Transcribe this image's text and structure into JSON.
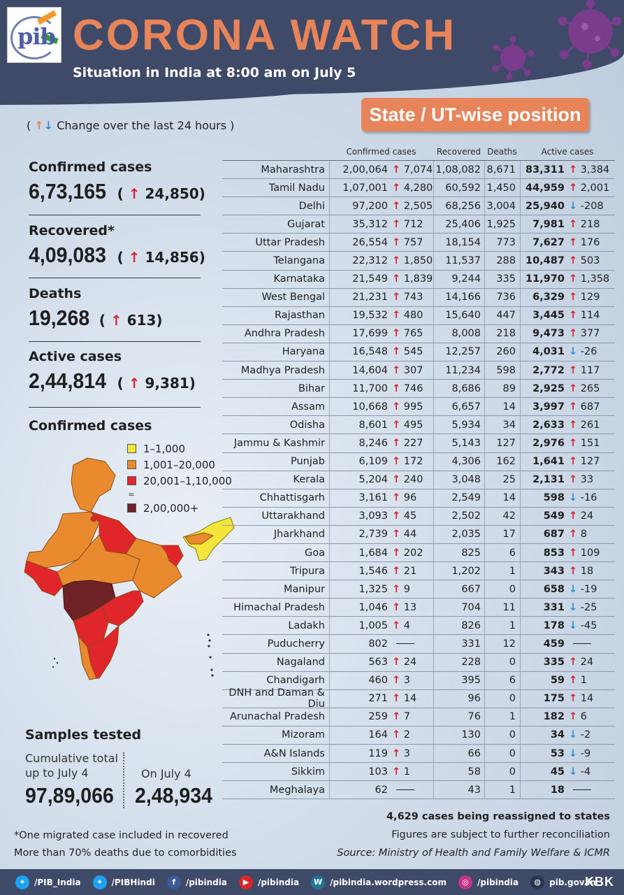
{
  "header": {
    "logo_text": "pib",
    "title": "CORONA WATCH",
    "subtitle": "Situation in India at 8:00 am on July 5"
  },
  "badge": "State / UT-wise position",
  "change_legend": "Change over the last 24 hours",
  "stats": {
    "confirmed": {
      "label": "Confirmed cases",
      "value": "6,73,165",
      "delta": "24,850"
    },
    "recovered": {
      "label": "Recovered*",
      "value": "4,09,083",
      "delta": "14,856"
    },
    "deaths": {
      "label": "Deaths",
      "value": "19,268",
      "delta": "613"
    },
    "active": {
      "label": "Active cases",
      "value": "2,44,814",
      "delta": "9,381"
    }
  },
  "map": {
    "title": "Confirmed cases",
    "legend": [
      {
        "label": "1–1,000",
        "color": "#f3e53a"
      },
      {
        "label": "1,001–20,000",
        "color": "#ea8a2e"
      },
      {
        "label": "20,001–1,10,000",
        "color": "#e0262b"
      },
      {
        "label": "2,00,000+",
        "color": "#6e2225"
      }
    ]
  },
  "samples": {
    "title": "Samples tested",
    "cumulative_label": "Cumulative total up to July 4",
    "cumulative_value": "97,89,066",
    "day_label": "On July 4",
    "day_value": "2,48,934"
  },
  "footnotes": {
    "f1": "*One migrated case included in recovered",
    "f2": "More than 70% deaths due to comorbidities"
  },
  "notes_right": {
    "n1": "4,629 cases being reassigned to states",
    "n2": "Figures are subject to further reconciliation",
    "n3": "Source: Ministry of Health and Family Welfare & ICMR"
  },
  "table": {
    "headers": {
      "confirmed": "Confirmed cases",
      "recovered": "Recovered",
      "deaths": "Deaths",
      "active": "Active cases"
    },
    "rows": [
      {
        "state": "Maharashtra",
        "conf": "2,00,064",
        "conf_d": "7,074",
        "conf_dir": "up",
        "rec": "1,08,082",
        "dea": "8,671",
        "act": "83,311",
        "act_d": "3,384",
        "act_dir": "up"
      },
      {
        "state": "Tamil Nadu",
        "conf": "1,07,001",
        "conf_d": "4,280",
        "conf_dir": "up",
        "rec": "60,592",
        "dea": "1,450",
        "act": "44,959",
        "act_d": "2,001",
        "act_dir": "up"
      },
      {
        "state": "Delhi",
        "conf": "97,200",
        "conf_d": "2,505",
        "conf_dir": "up",
        "rec": "68,256",
        "dea": "3,004",
        "act": "25,940",
        "act_d": "-208",
        "act_dir": "down"
      },
      {
        "state": "Gujarat",
        "conf": "35,312",
        "conf_d": "712",
        "conf_dir": "up",
        "rec": "25,406",
        "dea": "1,925",
        "act": "7,981",
        "act_d": "218",
        "act_dir": "up"
      },
      {
        "state": "Uttar Pradesh",
        "conf": "26,554",
        "conf_d": "757",
        "conf_dir": "up",
        "rec": "18,154",
        "dea": "773",
        "act": "7,627",
        "act_d": "176",
        "act_dir": "up"
      },
      {
        "state": "Telangana",
        "conf": "22,312",
        "conf_d": "1,850",
        "conf_dir": "up",
        "rec": "11,537",
        "dea": "288",
        "act": "10,487",
        "act_d": "503",
        "act_dir": "up"
      },
      {
        "state": "Karnataka",
        "conf": "21,549",
        "conf_d": "1,839",
        "conf_dir": "up",
        "rec": "9,244",
        "dea": "335",
        "act": "11,970",
        "act_d": "1,358",
        "act_dir": "up"
      },
      {
        "state": "West Bengal",
        "conf": "21,231",
        "conf_d": "743",
        "conf_dir": "up",
        "rec": "14,166",
        "dea": "736",
        "act": "6,329",
        "act_d": "129",
        "act_dir": "up"
      },
      {
        "state": "Rajasthan",
        "conf": "19,532",
        "conf_d": "480",
        "conf_dir": "up",
        "rec": "15,640",
        "dea": "447",
        "act": "3,445",
        "act_d": "114",
        "act_dir": "up"
      },
      {
        "state": "Andhra Pradesh",
        "conf": "17,699",
        "conf_d": "765",
        "conf_dir": "up",
        "rec": "8,008",
        "dea": "218",
        "act": "9,473",
        "act_d": "377",
        "act_dir": "up"
      },
      {
        "state": "Haryana",
        "conf": "16,548",
        "conf_d": "545",
        "conf_dir": "up",
        "rec": "12,257",
        "dea": "260",
        "act": "4,031",
        "act_d": "-26",
        "act_dir": "down"
      },
      {
        "state": "Madhya Pradesh",
        "conf": "14,604",
        "conf_d": "307",
        "conf_dir": "up",
        "rec": "11,234",
        "dea": "598",
        "act": "2,772",
        "act_d": "117",
        "act_dir": "up"
      },
      {
        "state": "Bihar",
        "conf": "11,700",
        "conf_d": "746",
        "conf_dir": "up",
        "rec": "8,686",
        "dea": "89",
        "act": "2,925",
        "act_d": "265",
        "act_dir": "up"
      },
      {
        "state": "Assam",
        "conf": "10,668",
        "conf_d": "995",
        "conf_dir": "up",
        "rec": "6,657",
        "dea": "14",
        "act": "3,997",
        "act_d": "687",
        "act_dir": "up"
      },
      {
        "state": "Odisha",
        "conf": "8,601",
        "conf_d": "495",
        "conf_dir": "up",
        "rec": "5,934",
        "dea": "34",
        "act": "2,633",
        "act_d": "261",
        "act_dir": "up"
      },
      {
        "state": "Jammu & Kashmir",
        "conf": "8,246",
        "conf_d": "227",
        "conf_dir": "up",
        "rec": "5,143",
        "dea": "127",
        "act": "2,976",
        "act_d": "151",
        "act_dir": "up"
      },
      {
        "state": "Punjab",
        "conf": "6,109",
        "conf_d": "172",
        "conf_dir": "up",
        "rec": "4,306",
        "dea": "162",
        "act": "1,641",
        "act_d": "127",
        "act_dir": "up"
      },
      {
        "state": "Kerala",
        "conf": "5,204",
        "conf_d": "240",
        "conf_dir": "up",
        "rec": "3,048",
        "dea": "25",
        "act": "2,131",
        "act_d": "33",
        "act_dir": "up"
      },
      {
        "state": "Chhattisgarh",
        "conf": "3,161",
        "conf_d": "96",
        "conf_dir": "up",
        "rec": "2,549",
        "dea": "14",
        "act": "598",
        "act_d": "-16",
        "act_dir": "down"
      },
      {
        "state": "Uttarakhand",
        "conf": "3,093",
        "conf_d": "45",
        "conf_dir": "up",
        "rec": "2,502",
        "dea": "42",
        "act": "549",
        "act_d": "24",
        "act_dir": "up"
      },
      {
        "state": "Jharkhand",
        "conf": "2,739",
        "conf_d": "44",
        "conf_dir": "up",
        "rec": "2,035",
        "dea": "17",
        "act": "687",
        "act_d": "8",
        "act_dir": "up"
      },
      {
        "state": "Goa",
        "conf": "1,684",
        "conf_d": "202",
        "conf_dir": "up",
        "rec": "825",
        "dea": "6",
        "act": "853",
        "act_d": "109",
        "act_dir": "up"
      },
      {
        "state": "Tripura",
        "conf": "1,546",
        "conf_d": "21",
        "conf_dir": "up",
        "rec": "1,202",
        "dea": "1",
        "act": "343",
        "act_d": "18",
        "act_dir": "up"
      },
      {
        "state": "Manipur",
        "conf": "1,325",
        "conf_d": "9",
        "conf_dir": "up",
        "rec": "667",
        "dea": "0",
        "act": "658",
        "act_d": "-19",
        "act_dir": "down"
      },
      {
        "state": "Himachal Pradesh",
        "conf": "1,046",
        "conf_d": "13",
        "conf_dir": "up",
        "rec": "704",
        "dea": "11",
        "act": "331",
        "act_d": "-25",
        "act_dir": "down"
      },
      {
        "state": "Ladakh",
        "conf": "1,005",
        "conf_d": "4",
        "conf_dir": "up",
        "rec": "826",
        "dea": "1",
        "act": "178",
        "act_d": "-45",
        "act_dir": "down"
      },
      {
        "state": "Puducherry",
        "conf": "802",
        "conf_d": "",
        "conf_dir": "none",
        "rec": "331",
        "dea": "12",
        "act": "459",
        "act_d": "",
        "act_dir": "none"
      },
      {
        "state": "Nagaland",
        "conf": "563",
        "conf_d": "24",
        "conf_dir": "up",
        "rec": "228",
        "dea": "0",
        "act": "335",
        "act_d": "24",
        "act_dir": "up"
      },
      {
        "state": "Chandigarh",
        "conf": "460",
        "conf_d": "3",
        "conf_dir": "up",
        "rec": "395",
        "dea": "6",
        "act": "59",
        "act_d": "1",
        "act_dir": "up"
      },
      {
        "state": "DNH and Daman & Diu",
        "conf": "271",
        "conf_d": "14",
        "conf_dir": "up",
        "rec": "96",
        "dea": "0",
        "act": "175",
        "act_d": "14",
        "act_dir": "up"
      },
      {
        "state": "Arunachal Pradesh",
        "conf": "259",
        "conf_d": "7",
        "conf_dir": "up",
        "rec": "76",
        "dea": "1",
        "act": "182",
        "act_d": "6",
        "act_dir": "up"
      },
      {
        "state": "Mizoram",
        "conf": "164",
        "conf_d": "2",
        "conf_dir": "up",
        "rec": "130",
        "dea": "0",
        "act": "34",
        "act_d": "-2",
        "act_dir": "down"
      },
      {
        "state": "A&N Islands",
        "conf": "119",
        "conf_d": "3",
        "conf_dir": "up",
        "rec": "66",
        "dea": "0",
        "act": "53",
        "act_d": "-9",
        "act_dir": "down"
      },
      {
        "state": "Sikkim",
        "conf": "103",
        "conf_d": "1",
        "conf_dir": "up",
        "rec": "58",
        "dea": "0",
        "act": "45",
        "act_d": "-4",
        "act_dir": "down"
      },
      {
        "state": "Meghalaya",
        "conf": "62",
        "conf_d": "",
        "conf_dir": "none",
        "rec": "43",
        "dea": "1",
        "act": "18",
        "act_d": "",
        "act_dir": "none"
      }
    ]
  },
  "footer": {
    "items": [
      {
        "icon": "twitter-icon",
        "label": "/PIB_India",
        "color": "#1da1f2"
      },
      {
        "icon": "twitter-icon",
        "label": "/PIBHindi",
        "color": "#1da1f2"
      },
      {
        "icon": "facebook-icon",
        "label": "/pibindia",
        "color": "#3b5998"
      },
      {
        "icon": "youtube-icon",
        "label": "/pibindia",
        "color": "#d9252a"
      },
      {
        "icon": "wordpress-icon",
        "label": "/pibindia.wordpress.com",
        "color": "#21759b"
      },
      {
        "icon": "instagram-icon",
        "label": "/pibindia",
        "color": "#c13584"
      },
      {
        "icon": "globe-icon",
        "label": "pib.gov.in",
        "color": "#2a3550"
      }
    ],
    "brand": "KBK"
  }
}
